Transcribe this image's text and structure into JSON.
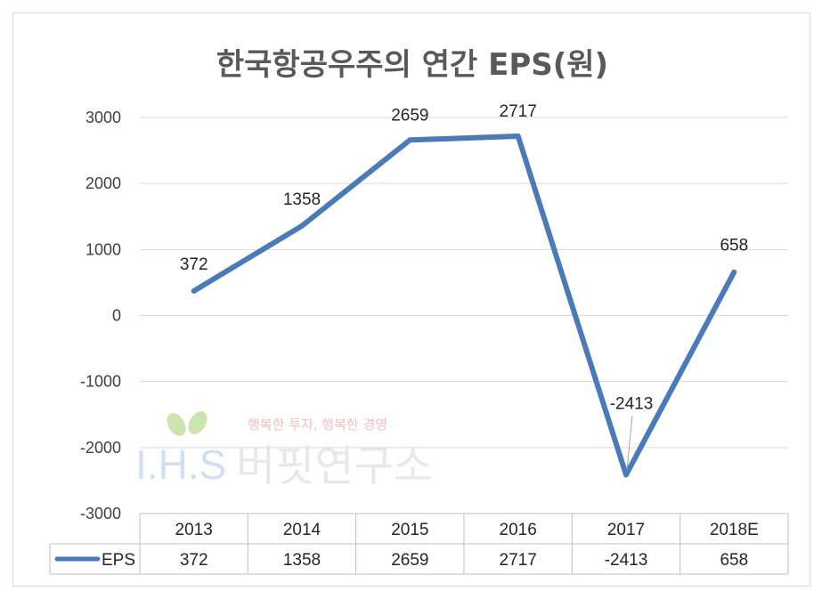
{
  "chart_data": {
    "type": "line",
    "title": "한국항공우주의 연간 EPS(원)",
    "categories": [
      "2013",
      "2014",
      "2015",
      "2016",
      "2017",
      "2018E"
    ],
    "series": [
      {
        "name": "EPS",
        "values": [
          372,
          1358,
          2659,
          2717,
          -2413,
          658
        ],
        "color": "#4a7ab8"
      }
    ],
    "yticks": [
      "3000",
      "2000",
      "1000",
      "0",
      "-1000",
      "-2000",
      "-3000"
    ],
    "ylim": [
      -3000,
      3000
    ],
    "grid": true,
    "data_table": {
      "row_label": "EPS",
      "values": [
        "372",
        "1358",
        "2659",
        "2717",
        "-2413",
        "658"
      ]
    },
    "data_labels": [
      "372",
      "1358",
      "2659",
      "2717",
      "-2413",
      "658"
    ]
  },
  "watermark": {
    "slogan": "행복한 투자, 행복한 경영",
    "brand_latin": "I.H.S",
    "brand_korean": "버핏연구소"
  }
}
